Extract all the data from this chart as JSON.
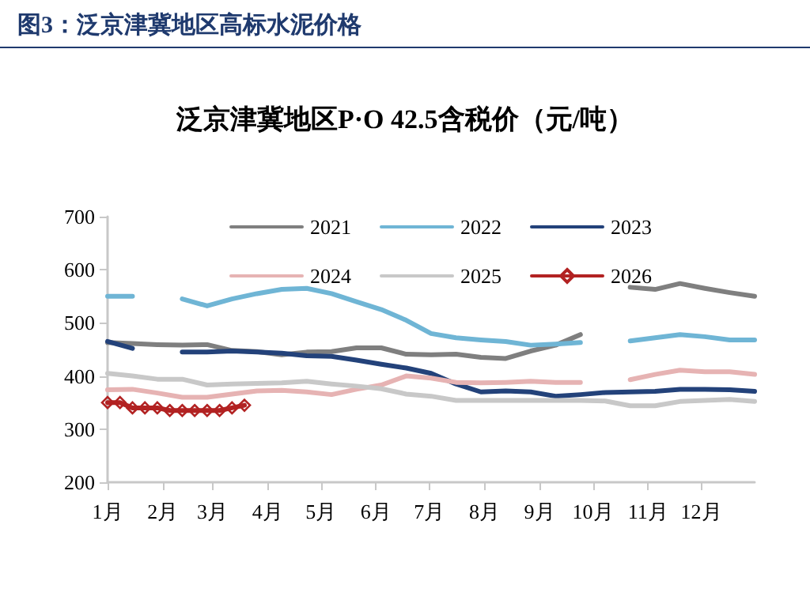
{
  "chart_data": {
    "type": "line",
    "title": "图3：泛京津冀地区高标水泥价格",
    "subtitle": "泛京津冀地区P·O 42.5含税价（元/吨）",
    "x": [
      "--01-01",
      "--01-15",
      "--01-29",
      "--02-12",
      "--02-26",
      "--03-12",
      "--03-26",
      "--04-09",
      "--04-23",
      "--05-07",
      "--05-21",
      "--06-04",
      "--06-18",
      "--07-02",
      "--07-16",
      "--07-30",
      "--08-13",
      "--08-27",
      "--09-10",
      "--09-24",
      "--10-08",
      "--10-22",
      "--11-05",
      "--11-19",
      "--12-03",
      "--12-17",
      "--12-31"
    ],
    "xlim": [
      "--01-01",
      "--12-31"
    ],
    "xticks": [
      {
        "value": "--01-01",
        "label": "1月"
      },
      {
        "value": "--02-01",
        "label": "2月"
      },
      {
        "value": "--03-01",
        "label": "3月"
      },
      {
        "value": "--04-01",
        "label": "4月"
      },
      {
        "value": "--05-01",
        "label": "5月"
      },
      {
        "value": "--06-01",
        "label": "6月"
      },
      {
        "value": "--07-01",
        "label": "7月"
      },
      {
        "value": "--08-01",
        "label": "8月"
      },
      {
        "value": "--09-01",
        "label": "9月"
      },
      {
        "value": "--10-01",
        "label": "10月"
      },
      {
        "value": "--11-01",
        "label": "11月"
      },
      {
        "value": "--12-01",
        "label": "12月"
      }
    ],
    "ylim": [
      200,
      700
    ],
    "yticks": [
      200,
      300,
      400,
      500,
      600,
      700
    ],
    "grid": false,
    "legend": "top",
    "marker": "none",
    "line_style": "solid",
    "series": [
      {
        "name": "2021",
        "color": "#7f7f7f",
        "values": [
          463,
          461,
          459,
          458,
          459,
          448,
          446,
          440,
          445,
          446,
          453,
          453,
          441,
          440,
          441,
          435,
          433,
          447,
          458,
          478,
          null,
          567,
          563,
          574,
          565,
          557,
          550
        ]
      },
      {
        "name": "2022",
        "color": "#6fb5d5",
        "values": [
          550,
          550,
          null,
          545,
          532,
          545,
          555,
          563,
          565,
          555,
          540,
          525,
          505,
          480,
          472,
          468,
          465,
          458,
          460,
          463,
          null,
          466,
          472,
          478,
          474,
          468,
          468
        ]
      },
      {
        "name": "2023",
        "color": "#23427a",
        "values": [
          465,
          452,
          null,
          445,
          445,
          447,
          445,
          443,
          438,
          437,
          430,
          422,
          415,
          405,
          385,
          370,
          372,
          370,
          362,
          365,
          369,
          370,
          371,
          375,
          375,
          374,
          371
        ]
      },
      {
        "name": "2024",
        "color": "#e6b3b3",
        "values": [
          374,
          375,
          368,
          360,
          360,
          366,
          372,
          373,
          370,
          365,
          375,
          383,
          400,
          396,
          388,
          387,
          388,
          390,
          388,
          388,
          null,
          393,
          403,
          411,
          408,
          408,
          403
        ]
      },
      {
        "name": "2025",
        "color": "#c8c8c8",
        "values": [
          405,
          400,
          394,
          394,
          383,
          385,
          386,
          387,
          390,
          385,
          381,
          376,
          366,
          362,
          354,
          354,
          354,
          354,
          354,
          354,
          353,
          344,
          344,
          352,
          354,
          356,
          352
        ]
      },
      {
        "name": "2026",
        "color": "#b22222",
        "marker": "diamond",
        "x": [
          "--01-01",
          "--01-08",
          "--01-15",
          "--01-22",
          "--01-29",
          "--02-05",
          "--02-12",
          "--02-19",
          "--02-26",
          "--03-05",
          "--03-12",
          "--03-19"
        ],
        "values": [
          350,
          350,
          340,
          340,
          340,
          335,
          335,
          335,
          335,
          335,
          340,
          345
        ]
      }
    ]
  }
}
